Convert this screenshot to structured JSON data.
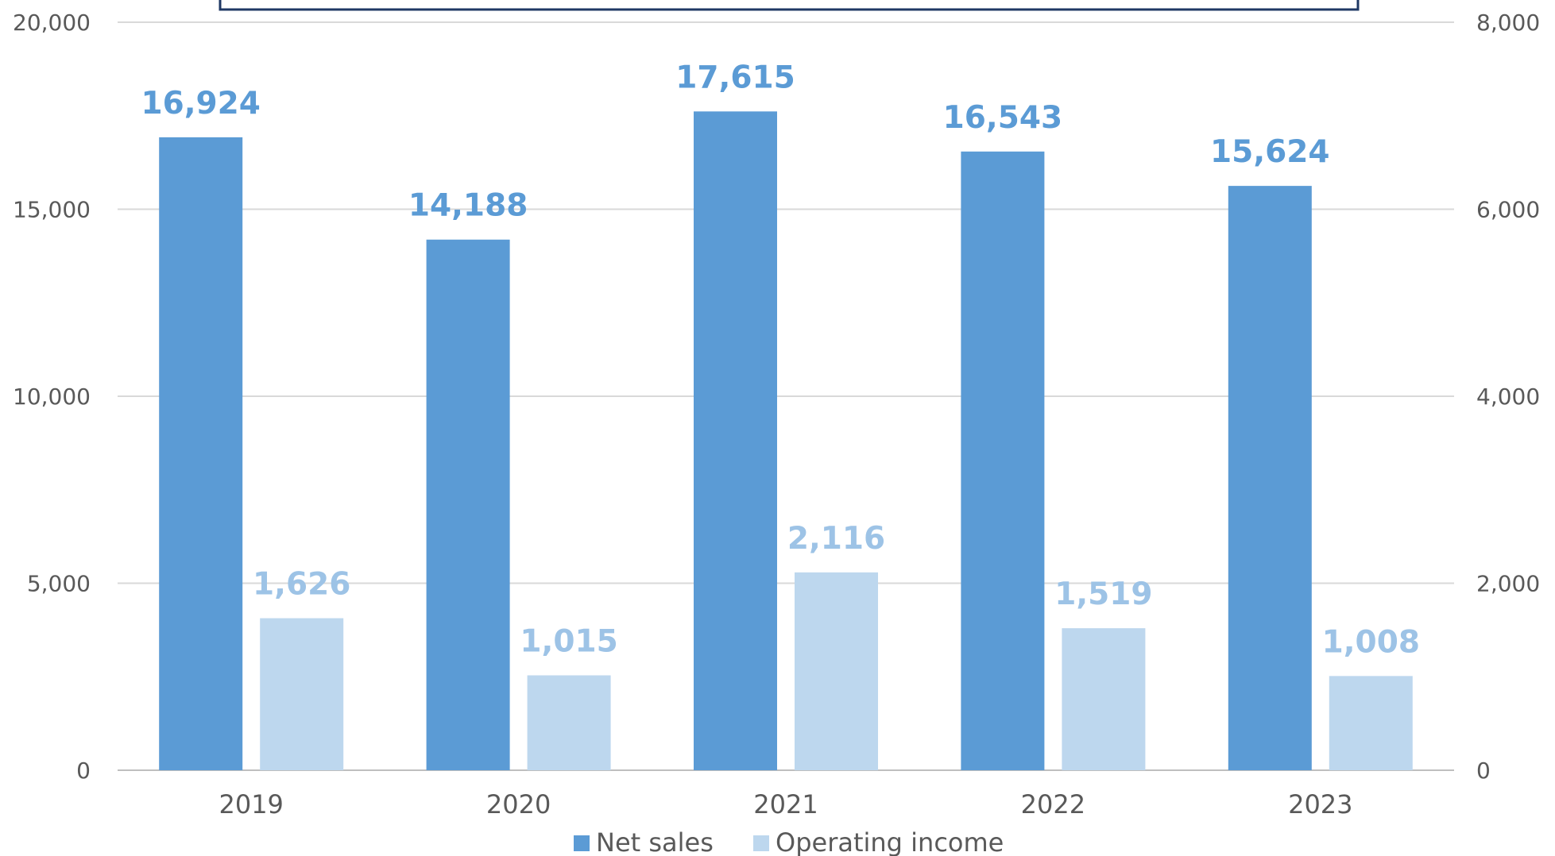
{
  "chart_data": {
    "type": "bar",
    "categories": [
      "2019",
      "2020",
      "2021",
      "2022",
      "2023"
    ],
    "series": [
      {
        "name": "Net sales",
        "axis": "left",
        "color": "#5b9bd5",
        "values": [
          16924,
          14188,
          17615,
          16543,
          15624
        ],
        "labels": [
          "16,924",
          "14,188",
          "17,615",
          "16,543",
          "15,624"
        ]
      },
      {
        "name": "Operating income",
        "axis": "right",
        "color": "#bdd7ee",
        "values": [
          1626,
          1015,
          2116,
          1519,
          1008
        ],
        "labels": [
          "1,626",
          "1,015",
          "2,116",
          "1,519",
          "1,008"
        ]
      }
    ],
    "y_left": {
      "min": 0,
      "max": 20000,
      "ticks": [
        0,
        5000,
        10000,
        15000,
        20000
      ],
      "tick_labels": [
        "0",
        "5,000",
        "10,000",
        "15,000",
        "20,000"
      ]
    },
    "y_right": {
      "min": 0,
      "max": 8000,
      "ticks": [
        0,
        2000,
        4000,
        6000,
        8000
      ],
      "tick_labels": [
        "0",
        "2,000",
        "4,000",
        "6,000",
        "8,000"
      ]
    },
    "grid": true,
    "legend_position": "bottom",
    "colors": {
      "grid": "#d9d9d9",
      "axis_text": "#595959",
      "frame": "#1f3864",
      "label_net_sales": "#5b9bd5",
      "label_operating_income": "#9dc3e6"
    }
  }
}
